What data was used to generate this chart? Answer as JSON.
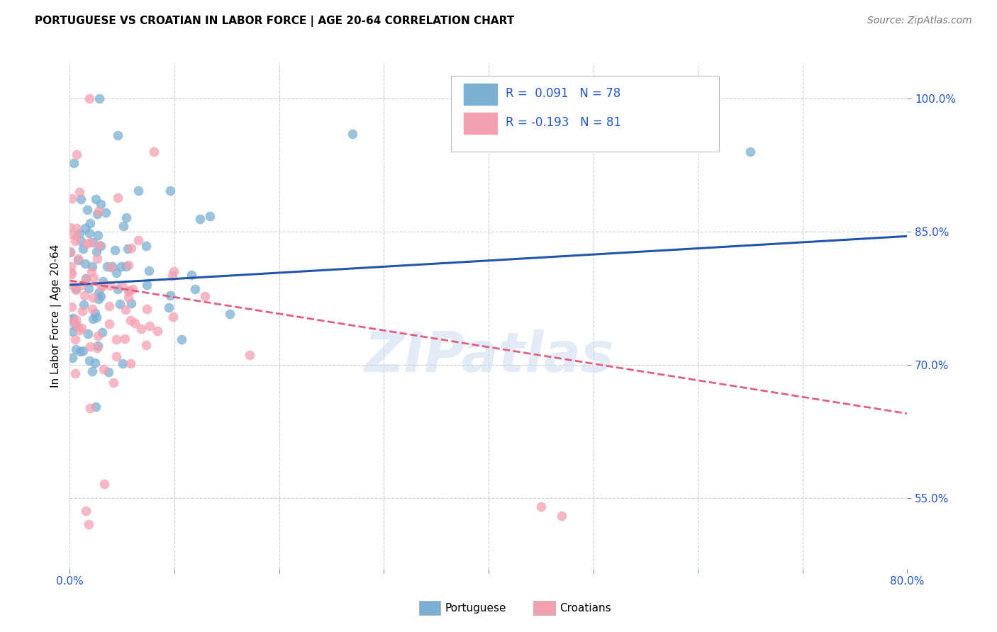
{
  "title": "PORTUGUESE VS CROATIAN IN LABOR FORCE | AGE 20-64 CORRELATION CHART",
  "source": "Source: ZipAtlas.com",
  "ylabel": "In Labor Force | Age 20-64",
  "ytick_labels": [
    "55.0%",
    "70.0%",
    "85.0%",
    "100.0%"
  ],
  "ytick_values": [
    0.55,
    0.7,
    0.85,
    1.0
  ],
  "xmin": 0.0,
  "xmax": 0.8,
  "ymin": 0.47,
  "ymax": 1.04,
  "watermark": "ZIPatlas",
  "portuguese_color": "#7bafd4",
  "croatian_color": "#f4a0b0",
  "blue_line_color": "#2255aa",
  "pink_line_color": "#e06080",
  "R_blue": 0.091,
  "N_blue": 78,
  "R_pink": -0.193,
  "N_pink": 81,
  "legend_blue_text": "R =  0.091   N = 78",
  "legend_pink_text": "R = -0.193   N = 81",
  "legend_text_color": "#2255cc",
  "tick_color": "#2255cc",
  "title_fontsize": 11,
  "source_fontsize": 10,
  "axis_label_fontsize": 11,
  "tick_fontsize": 11,
  "legend_fontsize": 12
}
